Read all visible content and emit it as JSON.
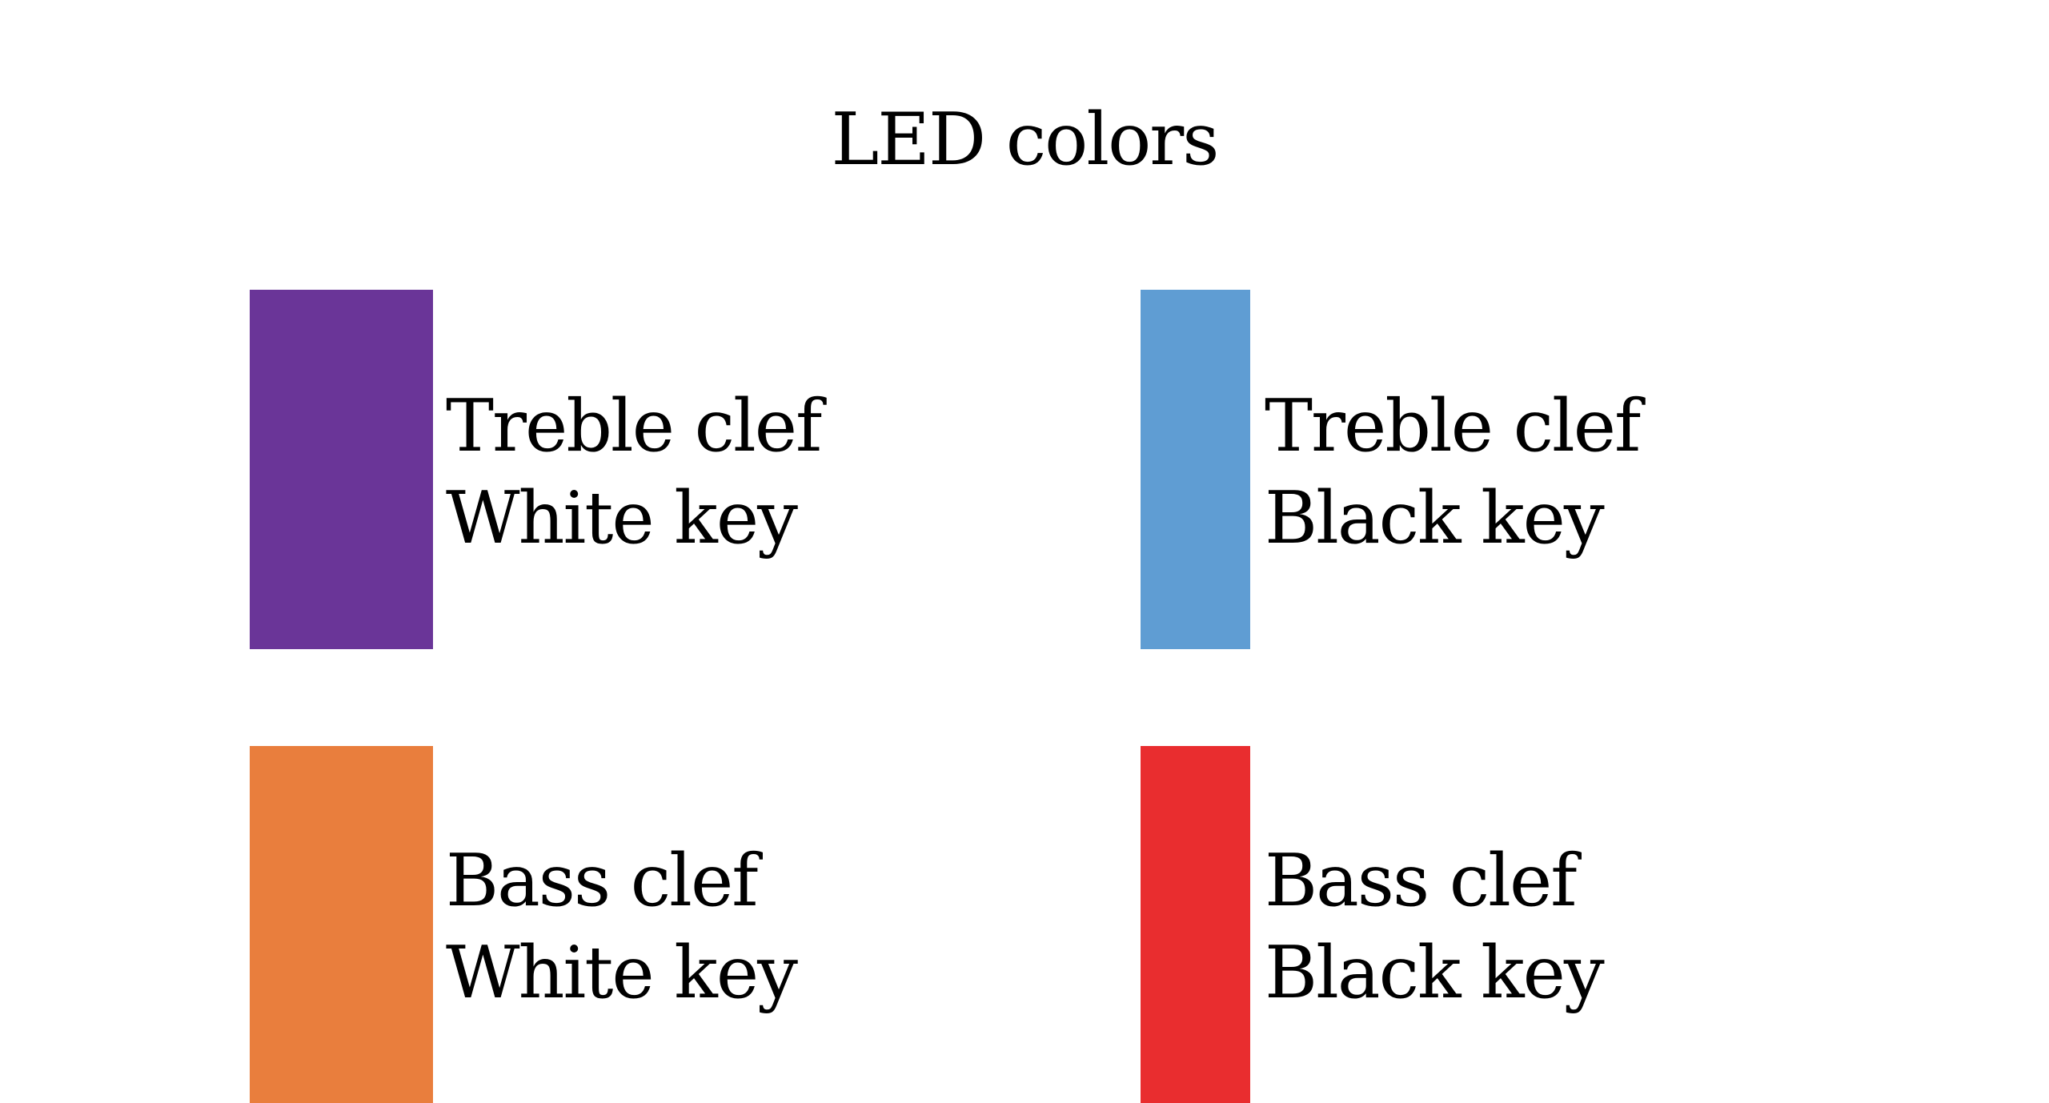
{
  "title": "LED colors",
  "legend": [
    {
      "color": "#6a3598",
      "line1": "Treble clef",
      "line2": "White key"
    },
    {
      "color": "#5f9dd3",
      "line1": "Treble clef",
      "line2": "Black key"
    },
    {
      "color": "#e97e3d",
      "line1": "Bass clef",
      "line2": "White key"
    },
    {
      "color": "#e92d2f",
      "line1": "Bass clef",
      "line2": "Black key"
    }
  ]
}
